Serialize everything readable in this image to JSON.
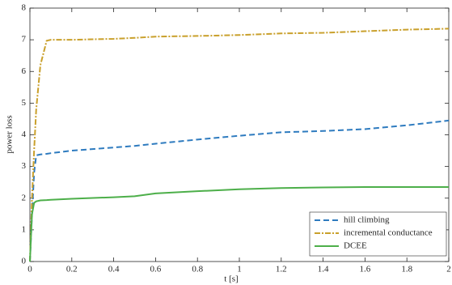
{
  "chart_data": {
    "type": "line",
    "xlabel": "t [s]",
    "ylabel": "power loss",
    "x": [
      0,
      0.01,
      0.02,
      0.03,
      0.05,
      0.08,
      0.1,
      0.2,
      0.4,
      0.5,
      0.6,
      0.8,
      1.0,
      1.2,
      1.4,
      1.6,
      1.8,
      2.0
    ],
    "series": [
      {
        "name": "hill climbing",
        "color": "#2e7bbf",
        "dash": "7,4",
        "values": [
          0,
          1.5,
          2.8,
          3.35,
          3.38,
          3.4,
          3.42,
          3.5,
          3.6,
          3.65,
          3.72,
          3.85,
          3.97,
          4.08,
          4.12,
          4.18,
          4.3,
          4.45
        ]
      },
      {
        "name": "incremental conductance",
        "color": "#c9a02c",
        "dash": "7,2,2,2",
        "values": [
          0,
          2.0,
          3.5,
          4.8,
          6.2,
          6.97,
          7.0,
          7.0,
          7.03,
          7.06,
          7.1,
          7.12,
          7.15,
          7.2,
          7.22,
          7.27,
          7.32,
          7.35
        ]
      },
      {
        "name": "DCEE",
        "color": "#4daf4a",
        "dash": "none",
        "values": [
          0,
          1.5,
          1.85,
          1.9,
          1.93,
          1.94,
          1.95,
          1.98,
          2.03,
          2.06,
          2.15,
          2.22,
          2.28,
          2.32,
          2.34,
          2.35,
          2.35,
          2.35
        ]
      }
    ],
    "xlim": [
      0,
      2
    ],
    "ylim": [
      0,
      8
    ],
    "xticks": [
      0,
      0.2,
      0.4,
      0.6,
      0.8,
      1,
      1.2,
      1.4,
      1.6,
      1.8,
      2
    ],
    "yticks": [
      0,
      1,
      2,
      3,
      4,
      5,
      6,
      7,
      8
    ],
    "legend": "lower right"
  }
}
